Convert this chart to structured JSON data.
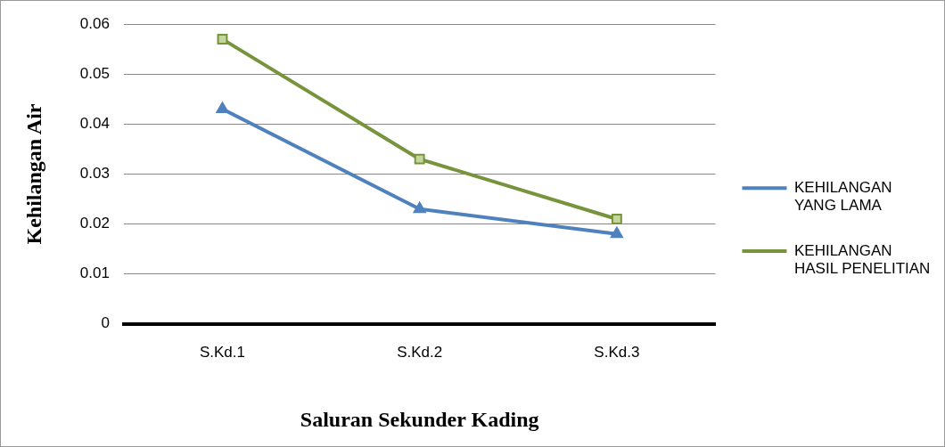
{
  "chart_data": {
    "type": "line",
    "xlabel": "Saluran Sekunder Kading",
    "ylabel": "Kehilangan Air",
    "categories": [
      "S.Kd.1",
      "S.Kd.2",
      "S.Kd.3"
    ],
    "series": [
      {
        "name": "KEHILANGAN YANG LAMA",
        "color": "#4f81bd",
        "marker": "triangle",
        "values": [
          0.043,
          0.023,
          0.018
        ]
      },
      {
        "name": "KEHILANGAN HASIL PENELITIAN",
        "color": "#77933c",
        "marker": "square",
        "values": [
          0.057,
          0.033,
          0.021
        ]
      }
    ],
    "ylim": [
      0,
      0.06
    ],
    "yticks": [
      0,
      0.01,
      0.02,
      0.03,
      0.04,
      0.05,
      0.06
    ],
    "grid": "y",
    "legend": "right"
  }
}
